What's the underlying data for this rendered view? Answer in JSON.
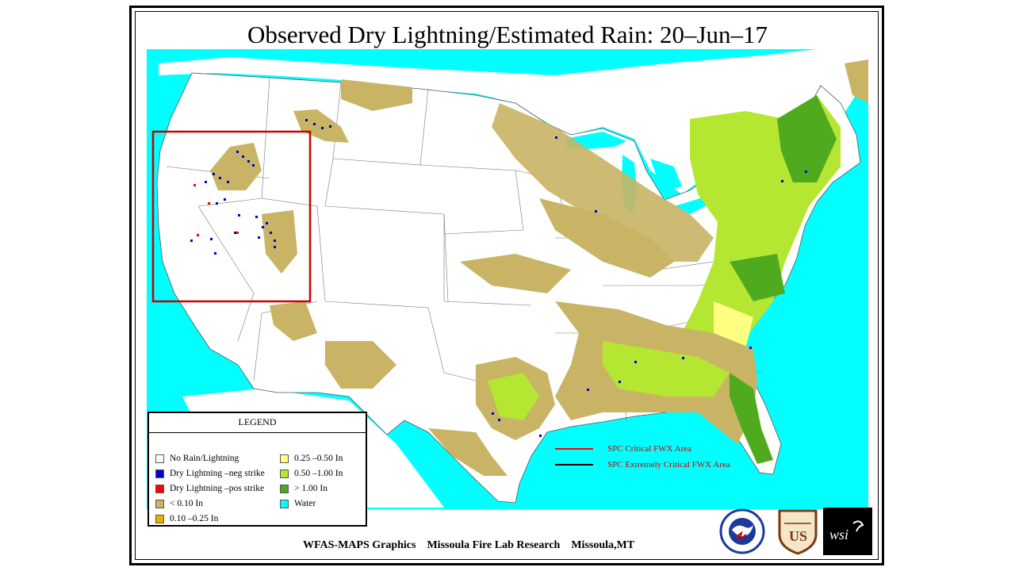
{
  "title": "Observed Dry Lightning/Estimated Rain: 20–Jun–17",
  "legend": {
    "title": "LEGEND",
    "items": [
      {
        "label": "No Rain/Lightning",
        "color": "#ffffff"
      },
      {
        "label": "Dry Lightning –neg strike",
        "color": "#0000cc"
      },
      {
        "label": "Dry Lightning –pos strike",
        "color": "#ff0000"
      },
      {
        "label": "< 0.10 In",
        "color": "#c8b464"
      },
      {
        "label": "0.10 –0.25 In",
        "color": "#e6b400"
      },
      {
        "label": "0.25 –0.50 In",
        "color": "#ffff82"
      },
      {
        "label": "0.50 –1.00 In",
        "color": "#b4e632"
      },
      {
        "label": "> 1.00 In",
        "color": "#50aa1e"
      },
      {
        "label": "Water",
        "color": "#00ffff"
      }
    ]
  },
  "spc": {
    "critical_label": "SPC Critical FWX Area",
    "critical_color": "#ff0000",
    "extreme_label": "SPC Extremely Critical FWX Area",
    "extreme_color": "#000000"
  },
  "footer": "WFAS-MAPS Graphics    Missoula Fire Lab Research    Missoula,MT",
  "logos": {
    "nws": {
      "icon": "nws-logo"
    },
    "usfs": {
      "icon": "usfs-shield-logo",
      "text": "US"
    },
    "wsi": {
      "icon": "wsi-logo",
      "text": "wsi"
    }
  }
}
